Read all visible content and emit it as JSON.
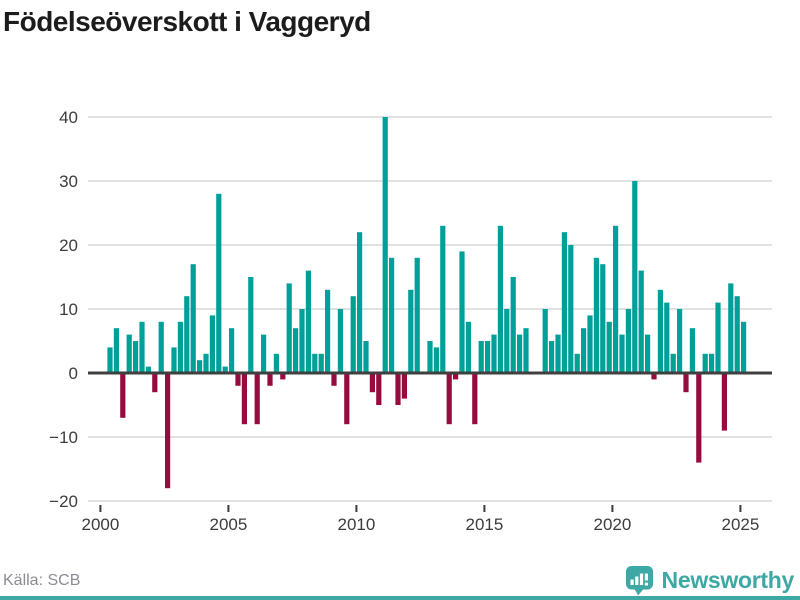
{
  "title": "Födelseöverskott i Vaggeryd",
  "footer": {
    "source": "Källa: SCB",
    "brand": "Newsworthy"
  },
  "colors": {
    "positive_bar": "#00a09a",
    "negative_bar": "#970b3f",
    "gridline": "#e2e2e2",
    "zero_line": "#3f3f3f",
    "axis_text": "#3c3c3c",
    "title_text": "#1c1c1c",
    "source_text": "#8b8b95",
    "brand_teal": "#3ea8a4"
  },
  "chart_data": {
    "type": "bar",
    "title": "Födelseöverskott i Vaggeryd",
    "frequency": "quarterly",
    "start": "2000-Q2",
    "x_step_years": 0.25,
    "values": [
      4,
      7,
      -7,
      6,
      5,
      8,
      1,
      -3,
      8,
      -18,
      4,
      8,
      12,
      17,
      2,
      3,
      9,
      28,
      1,
      7,
      -2,
      -8,
      15,
      -8,
      6,
      -2,
      3,
      -1,
      14,
      7,
      10,
      16,
      3,
      3,
      13,
      -2,
      10,
      -8,
      12,
      22,
      5,
      -3,
      -5,
      40,
      18,
      -5,
      -4,
      13,
      18,
      0,
      5,
      4,
      23,
      -8,
      -1,
      19,
      8,
      -8,
      5,
      5,
      6,
      23,
      10,
      15,
      6,
      7,
      0,
      0,
      10,
      5,
      6,
      22,
      20,
      3,
      7,
      9,
      18,
      17,
      8,
      23,
      6,
      10,
      30,
      16,
      6,
      -1,
      13,
      11,
      3,
      10,
      -3,
      7,
      -14,
      3,
      3,
      11,
      -9,
      14,
      12,
      8
    ],
    "xlabel": "",
    "ylabel": "",
    "ylim": [
      -20,
      40
    ],
    "yticks": [
      40,
      30,
      20,
      10,
      0,
      -10,
      -20
    ],
    "xticks": [
      2000,
      2005,
      2010,
      2015,
      2020,
      2025
    ],
    "grid": "horizontal",
    "legend": "none",
    "bar_color_rule": "teal if value >= 0 else crimson"
  }
}
